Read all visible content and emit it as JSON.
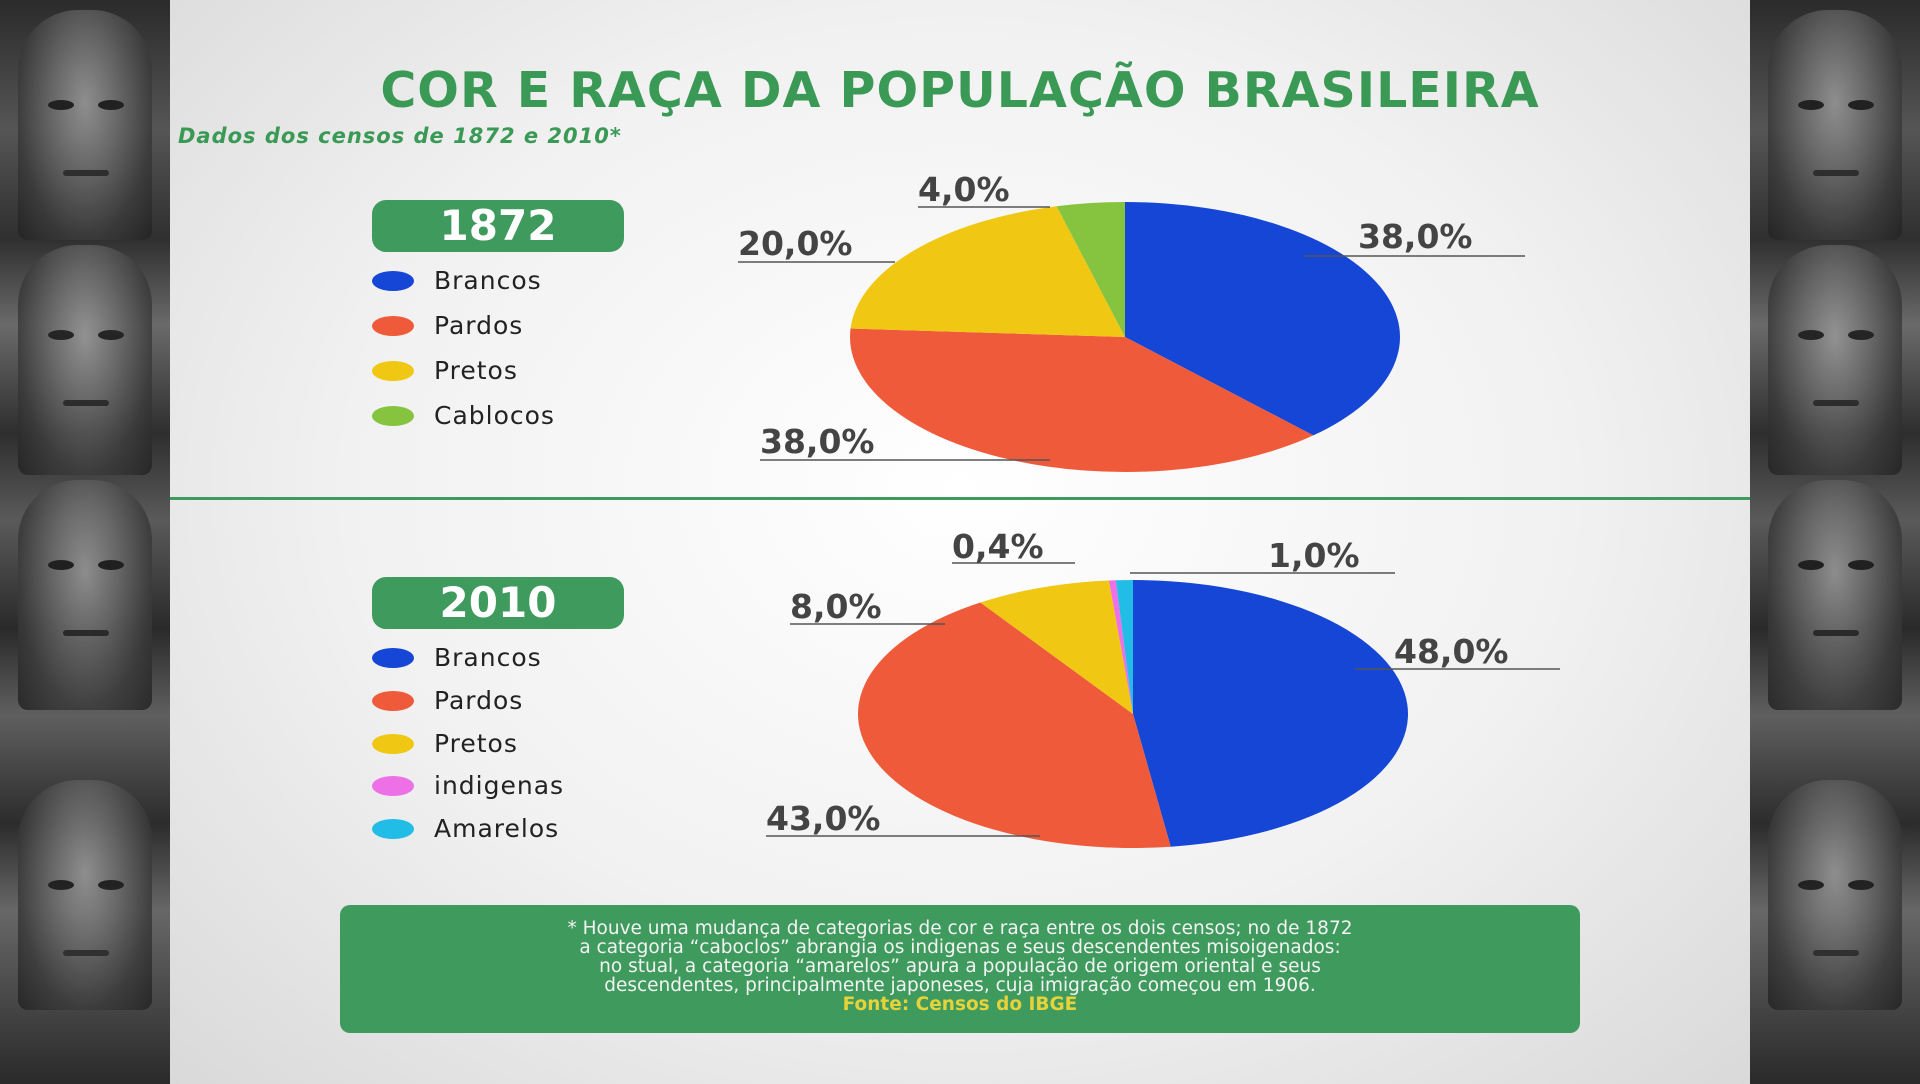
{
  "header": {
    "title": "COR E RAÇA DA POPULAÇÃO BRASILEIRA",
    "subtitle": "Dados dos censos de 1872 e 2010*"
  },
  "colors": {
    "brancos": "#1546d6",
    "pardos": "#ef5b3a",
    "pretos": "#f0c712",
    "caboclos": "#86c440",
    "indigenas": "#ee70e6",
    "amarelos": "#22bde6",
    "accent": "#3f9a5e"
  },
  "chart_data": [
    {
      "type": "pie",
      "title": "1872",
      "categories": [
        "Brancos",
        "Pardos",
        "Pretos",
        "Cablocos"
      ],
      "values": [
        38.0,
        38.0,
        20.0,
        4.0
      ],
      "labels": [
        "38,0%",
        "38,0%",
        "20,0%",
        "4,0%"
      ],
      "colors": [
        "#1546d6",
        "#ef5b3a",
        "#f0c712",
        "#86c440"
      ],
      "legend": "left"
    },
    {
      "type": "pie",
      "title": "2010",
      "categories": [
        "Brancos",
        "Pardos",
        "Pretos",
        "indigenas",
        "Amarelos"
      ],
      "values": [
        48.0,
        43.0,
        8.0,
        0.4,
        1.0
      ],
      "labels": [
        "48,0%",
        "43,0%",
        "8,0%",
        "0,4%",
        "1,0%"
      ],
      "colors": [
        "#1546d6",
        "#ef5b3a",
        "#f0c712",
        "#ee70e6",
        "#22bde6"
      ],
      "legend": "left"
    }
  ],
  "note": {
    "lines": [
      "* Houve uma mudança de categorias de cor e raça entre os dois censos; no de 1872",
      "a categoria “caboclos” abrangia os indigenas e seus descendentes misoigenados:",
      "no stual, a categoria “amarelos” apura a população de origem oriental e seus",
      "descendentes, principalmente japoneses, cuja imigração começou em 1906."
    ],
    "source": "Fonte: Censos do IBGE"
  }
}
